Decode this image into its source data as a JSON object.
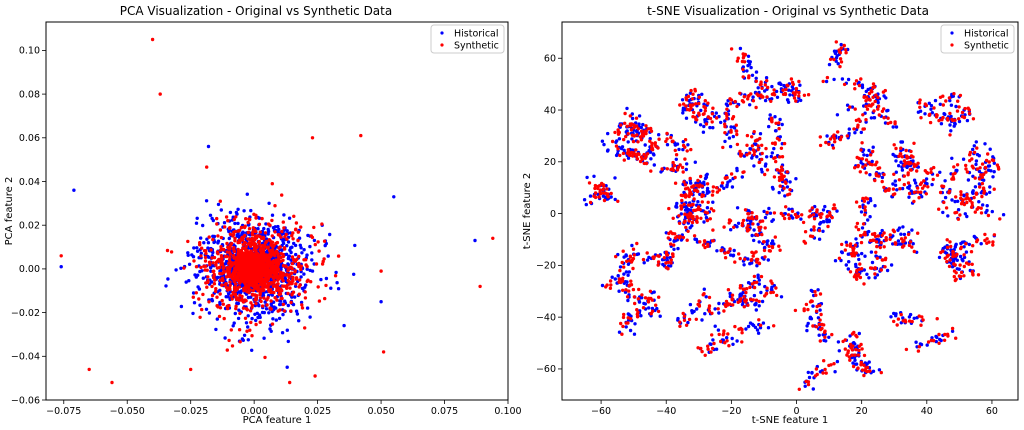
{
  "chart_data": [
    {
      "type": "scatter",
      "title": "PCA Visualization - Original vs Synthetic Data",
      "xlabel": "PCA feature 1",
      "ylabel": "PCA feature 2",
      "xlim": [
        -0.082,
        0.1
      ],
      "ylim": [
        -0.06,
        0.113
      ],
      "xticks": [
        -0.075,
        -0.05,
        -0.025,
        0.0,
        0.025,
        0.05,
        0.075,
        0.1
      ],
      "yticks": [
        -0.06,
        -0.04,
        -0.02,
        0.0,
        0.02,
        0.04,
        0.06,
        0.08,
        0.1
      ],
      "xtick_labels": [
        "−0.075",
        "−0.050",
        "−0.025",
        "0.000",
        "0.025",
        "0.050",
        "0.075",
        "0.100"
      ],
      "ytick_labels": [
        "−0.06",
        "−0.04",
        "−0.02",
        "0.00",
        "0.02",
        "0.04",
        "0.06",
        "0.08",
        "0.10"
      ],
      "grid": false,
      "legend_position": "top-right",
      "distribution": {
        "shape": "gaussian-cloud",
        "center": [
          0.0,
          0.0
        ],
        "sd": [
          0.012,
          0.012
        ],
        "core_sd": 0.004,
        "points_per_series": 1400
      },
      "series": [
        {
          "name": "Historical",
          "color": "#0000ff",
          "outliers": [
            [
              -0.071,
              0.036
            ],
            [
              -0.076,
              0.001
            ],
            [
              0.055,
              0.033
            ],
            [
              0.087,
              0.013
            ],
            [
              0.05,
              -0.015
            ],
            [
              0.013,
              -0.045
            ],
            [
              -0.018,
              0.056
            ]
          ]
        },
        {
          "name": "Synthetic",
          "color": "#ff0000",
          "outliers": [
            [
              -0.04,
              0.105
            ],
            [
              -0.037,
              0.08
            ],
            [
              0.042,
              0.061
            ],
            [
              0.023,
              0.06
            ],
            [
              -0.076,
              0.006
            ],
            [
              0.094,
              0.014
            ],
            [
              0.089,
              -0.008
            ],
            [
              -0.065,
              -0.046
            ],
            [
              -0.056,
              -0.052
            ],
            [
              0.051,
              -0.038
            ],
            [
              0.05,
              -0.001
            ],
            [
              0.014,
              -0.052
            ],
            [
              0.024,
              -0.049
            ],
            [
              -0.025,
              -0.046
            ]
          ]
        }
      ]
    },
    {
      "type": "scatter",
      "title": "t-SNE Visualization - Original vs Synthetic Data",
      "xlabel": "t-SNE feature 1",
      "ylabel": "t-SNE feature 2",
      "xlim": [
        -72,
        68
      ],
      "ylim": [
        -72,
        74
      ],
      "xticks": [
        -60,
        -40,
        -20,
        0,
        20,
        40,
        60
      ],
      "yticks": [
        -60,
        -40,
        -20,
        0,
        20,
        40,
        60
      ],
      "xtick_labels": [
        "−60",
        "−40",
        "−20",
        "0",
        "20",
        "40",
        "60"
      ],
      "ytick_labels": [
        "−60",
        "−40",
        "−20",
        "0",
        "20",
        "40",
        "60"
      ],
      "grid": false,
      "legend_position": "top-right",
      "distribution": {
        "shape": "clustered-disc",
        "center": [
          0,
          0
        ],
        "radius": 68,
        "clusters": 95,
        "points_per_cluster": 14
      },
      "series": [
        {
          "name": "Historical",
          "color": "#0000ff"
        },
        {
          "name": "Synthetic",
          "color": "#ff0000"
        }
      ]
    }
  ]
}
